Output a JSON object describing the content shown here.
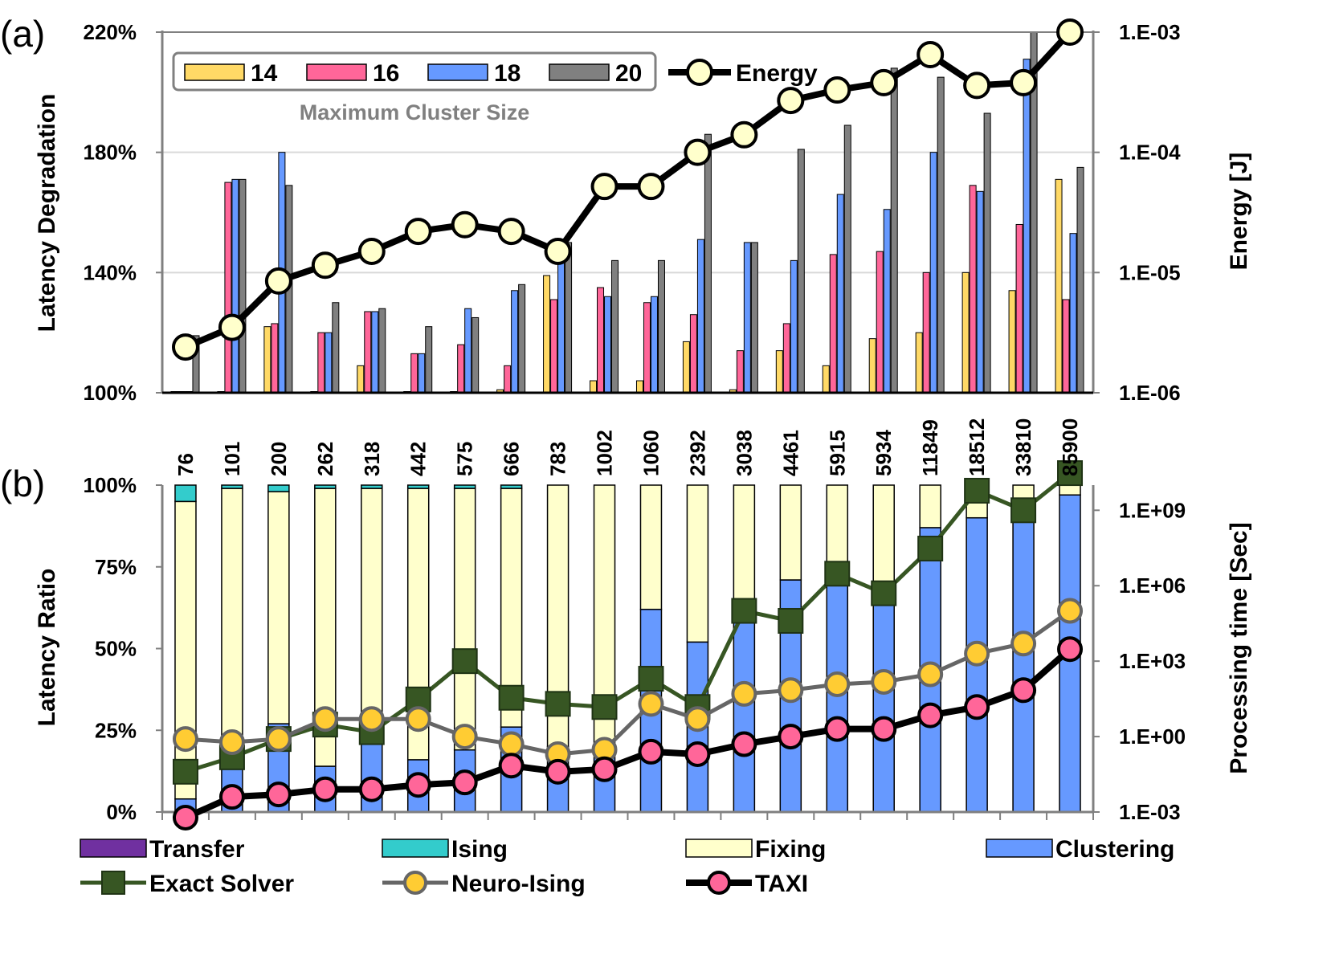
{
  "chart_data": [
    {
      "panel": "(a)",
      "type": "bar",
      "categories": [
        "76",
        "101",
        "200",
        "262",
        "318",
        "442",
        "575",
        "666",
        "783",
        "1002",
        "1060",
        "2392",
        "3038",
        "4461",
        "5915",
        "5934",
        "11849",
        "18512",
        "33810",
        "85900"
      ],
      "ylabel": "Latency Degradation",
      "y_ticks": [
        "100%",
        "140%",
        "180%",
        "220%"
      ],
      "ylim": [
        100,
        220
      ],
      "y2label": "Energy [J]",
      "y2_ticks": [
        "1.E-06",
        "1.E-05",
        "1.E-04",
        "1.E-03"
      ],
      "y2lim_log10": [
        -6,
        -3
      ],
      "legend_title": "Maximum Cluster Size",
      "series": [
        {
          "name": "14",
          "color": "#FFD966",
          "values": [
            100,
            100,
            122,
            100,
            109,
            100,
            100,
            101,
            139,
            104,
            104,
            117,
            101,
            114,
            109,
            118,
            120,
            140,
            134,
            171
          ]
        },
        {
          "name": "16",
          "color": "#FF6699",
          "values": [
            100,
            170,
            123,
            120,
            127,
            113,
            116,
            109,
            131,
            135,
            130,
            126,
            114,
            123,
            146,
            147,
            140,
            169,
            156,
            131
          ]
        },
        {
          "name": "18",
          "color": "#6699FF",
          "values": [
            100,
            171,
            180,
            120,
            127,
            113,
            128,
            134,
            150,
            132,
            132,
            151,
            150,
            144,
            166,
            161,
            180,
            167,
            211,
            153
          ]
        },
        {
          "name": "20",
          "color": "#808080",
          "values": [
            119,
            171,
            169,
            130,
            128,
            122,
            125,
            136,
            150,
            144,
            144,
            186,
            150,
            181,
            189,
            208,
            205,
            193,
            220,
            175
          ]
        }
      ],
      "energy_series": {
        "name": "Energy",
        "values": [
          2.4e-06,
          3.5e-06,
          8.5e-06,
          1.15e-05,
          1.5e-05,
          2.2e-05,
          2.5e-05,
          2.2e-05,
          1.5e-05,
          5.2e-05,
          5.2e-05,
          0.0001,
          0.00014,
          0.00027,
          0.00033,
          0.00038,
          0.00065,
          0.00036,
          0.00038,
          0.001
        ]
      }
    },
    {
      "panel": "(b)",
      "type": "bar",
      "stacked": true,
      "categories": [
        "76",
        "101",
        "200",
        "262",
        "318",
        "442",
        "575",
        "666",
        "783",
        "1002",
        "1060",
        "2392",
        "3038",
        "4461",
        "5915",
        "5934",
        "11849",
        "18512",
        "33810",
        "85900"
      ],
      "ylabel": "Latency Ratio",
      "y_ticks": [
        "0%",
        "25%",
        "50%",
        "75%",
        "100%"
      ],
      "ylim": [
        0,
        100
      ],
      "y2label": "Processing time [Sec]",
      "y2_ticks": [
        "1.E-03",
        "1.E+00",
        "1.E+03",
        "1.E+06",
        "1.E+09"
      ],
      "y2lim_log10": [
        -3,
        10
      ],
      "series": [
        {
          "name": "Clustering",
          "color": "#6699FF",
          "values": [
            4,
            21,
            27,
            14,
            27,
            16,
            19,
            26,
            20,
            20,
            62,
            52,
            60,
            71,
            72,
            66,
            87,
            90,
            96,
            97
          ]
        },
        {
          "name": "Fixing",
          "color": "#FFFFCC",
          "values": [
            91,
            78,
            71,
            85,
            72,
            83,
            80,
            73,
            80,
            80,
            38,
            48,
            40,
            29,
            28,
            34,
            13,
            10,
            4,
            3
          ]
        },
        {
          "name": "Ising",
          "color": "#33CCCC",
          "values": [
            5,
            1,
            2,
            1,
            1,
            1,
            1,
            1,
            0,
            0,
            0,
            0,
            0,
            0,
            0,
            0,
            0,
            0,
            0,
            0
          ]
        },
        {
          "name": "Transfer",
          "color": "#7030A0",
          "values": [
            0,
            0,
            0,
            0,
            0,
            0,
            0,
            0,
            0,
            0,
            0,
            0,
            0,
            0,
            0,
            0,
            0,
            0,
            0,
            0
          ]
        }
      ],
      "time_series": [
        {
          "name": "Exact Solver",
          "marker": "square",
          "color": "#375623",
          "fill": "#375623",
          "values": [
            0.04,
            0.15,
            0.8,
            3,
            1.5,
            30,
            1000,
            35,
            20,
            15,
            200,
            15,
            100000.0,
            40000.0,
            3000000.0,
            500000.0,
            30000000.0,
            6000000000.0,
            1000000000.0,
            30000000000.0
          ]
        },
        {
          "name": "Neuro-Ising",
          "marker": "circle",
          "color": "#666666",
          "fill": "#FFCC33",
          "values": [
            0.8,
            0.6,
            0.8,
            5,
            5,
            5,
            1,
            0.5,
            0.2,
            0.3,
            20,
            5,
            50,
            70,
            120,
            150,
            300,
            2000,
            5000,
            100000.0
          ]
        },
        {
          "name": "TAXI",
          "marker": "circle",
          "color": "#000000",
          "fill": "#FF6699",
          "values": [
            0.0006,
            0.004,
            0.005,
            0.008,
            0.008,
            0.012,
            0.015,
            0.07,
            0.04,
            0.05,
            0.25,
            0.2,
            0.5,
            1,
            2,
            2,
            7,
            15,
            70,
            3000
          ]
        }
      ]
    }
  ],
  "panel_labels": {
    "a": "(a)",
    "b": "(b)"
  },
  "legend_a": {
    "items": [
      "14",
      "16",
      "18",
      "20"
    ],
    "energy_label": "Energy",
    "title": "Maximum Cluster Size"
  },
  "legend_b": {
    "row1": [
      "Transfer",
      "Ising",
      "Fixing",
      "Clustering"
    ],
    "row2": [
      "Exact Solver",
      "Neuro-Ising",
      "TAXI"
    ]
  }
}
